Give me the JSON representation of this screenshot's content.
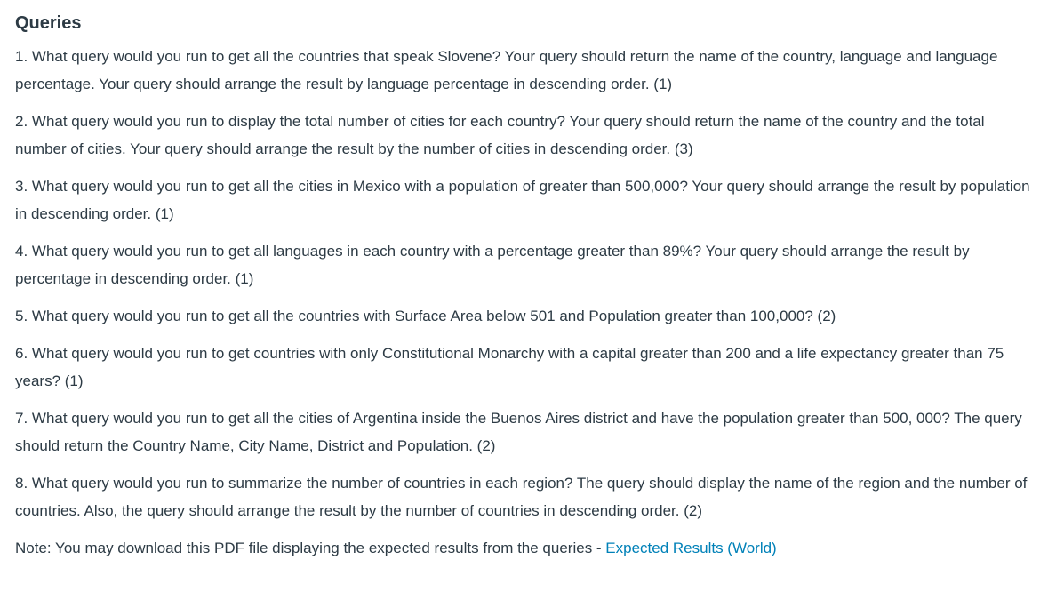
{
  "heading": "Queries",
  "questions": [
    "1. What query would you run to get all the countries that speak Slovene? Your query should return the name of the country, language and language percentage. Your query should arrange the result by language percentage in descending order. (1)",
    "2. What query would you run to display the total number of cities for each country? Your query should return the name of the country and the total number of cities. Your query should arrange the result by the number of cities in descending order. (3)",
    "3. What query would you run to get all the cities in Mexico with a population of greater than 500,000? Your query should arrange the result by population in descending order. (1)",
    "4. What query would you run to get all languages in each country with a percentage greater than 89%? Your query should arrange the result by percentage in descending order. (1)",
    "5. What query would you run to get all the countries with Surface Area below 501 and Population greater than 100,000? (2)",
    "6. What query would you run to get countries with only Constitutional Monarchy with a capital greater than 200 and a life expectancy greater than 75 years? (1)",
    "7. What query would you run to get all the cities of Argentina inside the Buenos Aires district and have the population greater than 500, 000? The query should return the Country Name, City Name, District and Population. (2)",
    "8. What query would you run to summarize the number of countries in each region? The query should display the name of the region and the number of countries. Also, the query should arrange the result by the number of countries in descending order. (2)"
  ],
  "note": {
    "text": "Note: You may download this PDF file displaying the expected results from the queries - ",
    "link_label": "Expected Results (World)"
  }
}
